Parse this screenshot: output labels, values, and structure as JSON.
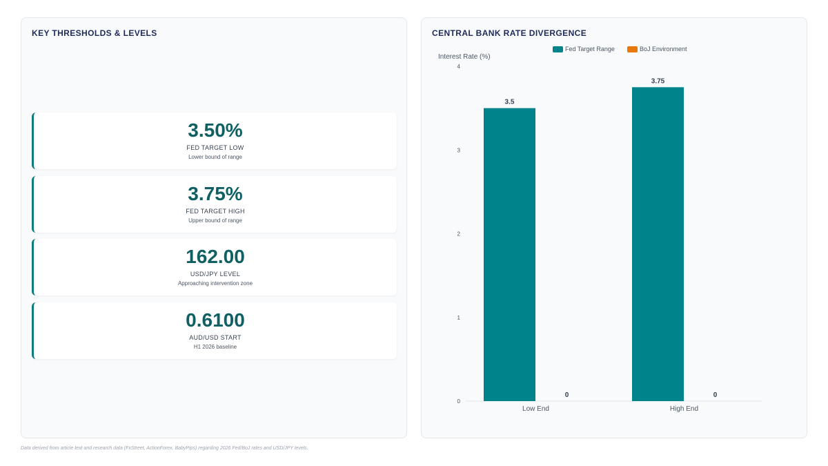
{
  "left_panel": {
    "title": "KEY THRESHOLDS & LEVELS",
    "cards": [
      {
        "value": "3.50%",
        "label": "FED TARGET LOW",
        "sub": "Lower bound of range"
      },
      {
        "value": "3.75%",
        "label": "FED TARGET HIGH",
        "sub": "Upper bound of range"
      },
      {
        "value": "162.00",
        "label": "USD/JPY LEVEL",
        "sub": "Approaching intervention zone"
      },
      {
        "value": "0.6100",
        "label": "AUD/USD START",
        "sub": "H1 2026 baseline"
      }
    ]
  },
  "right_panel": {
    "title": "CENTRAL BANK RATE DIVERGENCE"
  },
  "chart_data": {
    "type": "bar",
    "categories": [
      "Low End",
      "High End"
    ],
    "series": [
      {
        "name": "Fed Target Range",
        "values": [
          3.5,
          3.75
        ],
        "color": "#00838a"
      },
      {
        "name": "BoJ Environment",
        "values": [
          0,
          0
        ],
        "color": "#e8780c"
      }
    ],
    "ylabel": "Interest Rate (%)",
    "ylim": [
      0,
      4
    ],
    "yticks": [
      0,
      1,
      2,
      3,
      4
    ],
    "legend": "top-center",
    "grid": false
  },
  "footnote": "Data derived from article text and research data (FxStreet, ActionForex, BabyPips) regarding 2026 Fed/BoJ rates and USD/JPY levels."
}
